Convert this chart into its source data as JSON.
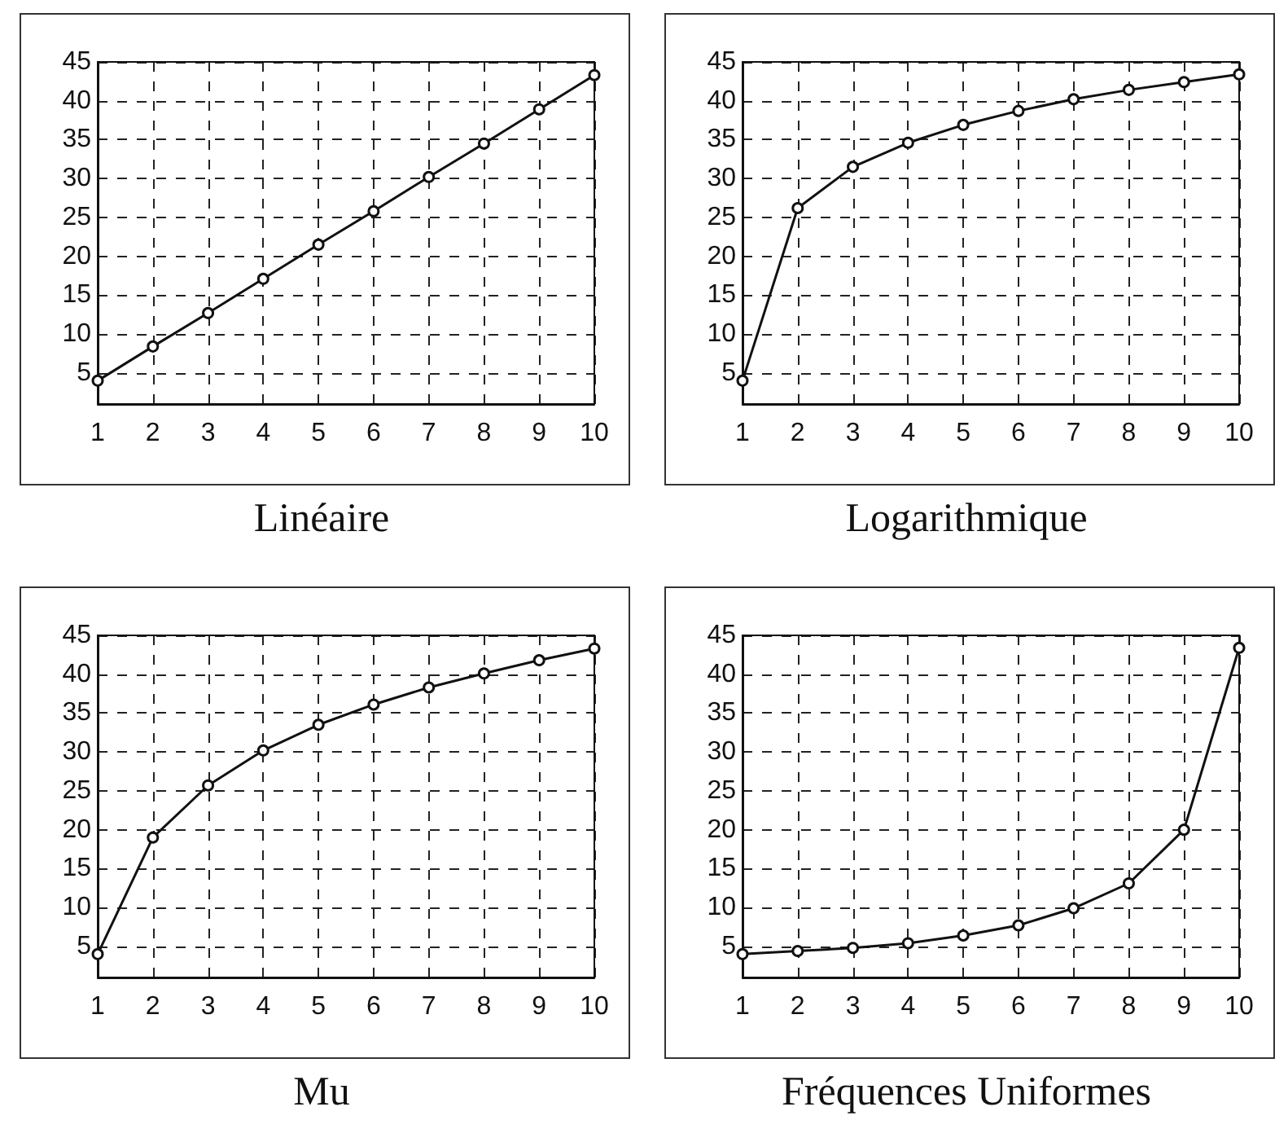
{
  "chart_data": [
    {
      "type": "line",
      "title": "Linéaire",
      "x": [
        1,
        2,
        3,
        4,
        5,
        6,
        7,
        8,
        9,
        10
      ],
      "series": [
        {
          "color": "#111111",
          "values": [
            4,
            8.4,
            12.7,
            17.1,
            21.5,
            25.8,
            30.2,
            34.5,
            38.9,
            43.3
          ]
        }
      ],
      "xlim": [
        1,
        10
      ],
      "xticks": [
        1,
        2,
        3,
        4,
        5,
        6,
        7,
        8,
        9,
        10
      ],
      "ylim": [
        1,
        45
      ],
      "yticks": [
        5,
        10,
        15,
        20,
        25,
        30,
        35,
        40,
        45
      ],
      "grid": true,
      "marker": "circle",
      "line_style": "solid"
    },
    {
      "type": "line",
      "title": "Logarithmique",
      "x": [
        1,
        2,
        3,
        4,
        5,
        6,
        7,
        8,
        9,
        10
      ],
      "series": [
        {
          "color": "#111111",
          "values": [
            4,
            26.2,
            31.5,
            34.6,
            36.9,
            38.7,
            40.2,
            41.4,
            42.4,
            43.4
          ]
        }
      ],
      "xlim": [
        1,
        10
      ],
      "xticks": [
        1,
        2,
        3,
        4,
        5,
        6,
        7,
        8,
        9,
        10
      ],
      "ylim": [
        1,
        45
      ],
      "yticks": [
        5,
        10,
        15,
        20,
        25,
        30,
        35,
        40,
        45
      ],
      "grid": true,
      "marker": "circle",
      "line_style": "solid"
    },
    {
      "type": "line",
      "title": "Mu",
      "x": [
        1,
        2,
        3,
        4,
        5,
        6,
        7,
        8,
        9,
        10
      ],
      "series": [
        {
          "color": "#111111",
          "values": [
            4,
            19,
            25.7,
            30.2,
            33.5,
            36.1,
            38.3,
            40.1,
            41.8,
            43.3
          ]
        }
      ],
      "xlim": [
        1,
        10
      ],
      "xticks": [
        1,
        2,
        3,
        4,
        5,
        6,
        7,
        8,
        9,
        10
      ],
      "ylim": [
        1,
        45
      ],
      "yticks": [
        5,
        10,
        15,
        20,
        25,
        30,
        35,
        40,
        45
      ],
      "grid": true,
      "marker": "circle",
      "line_style": "solid"
    },
    {
      "type": "line",
      "title": "Fréquences Uniformes",
      "x": [
        1,
        2,
        3,
        4,
        5,
        6,
        7,
        8,
        9,
        10
      ],
      "series": [
        {
          "color": "#111111",
          "values": [
            4,
            4.4,
            4.8,
            5.4,
            6.4,
            7.7,
            9.9,
            13.1,
            20,
            43.4
          ]
        }
      ],
      "xlim": [
        1,
        10
      ],
      "xticks": [
        1,
        2,
        3,
        4,
        5,
        6,
        7,
        8,
        9,
        10
      ],
      "ylim": [
        1,
        45
      ],
      "yticks": [
        5,
        10,
        15,
        20,
        25,
        30,
        35,
        40,
        45
      ],
      "grid": true,
      "marker": "circle",
      "line_style": "solid"
    }
  ]
}
